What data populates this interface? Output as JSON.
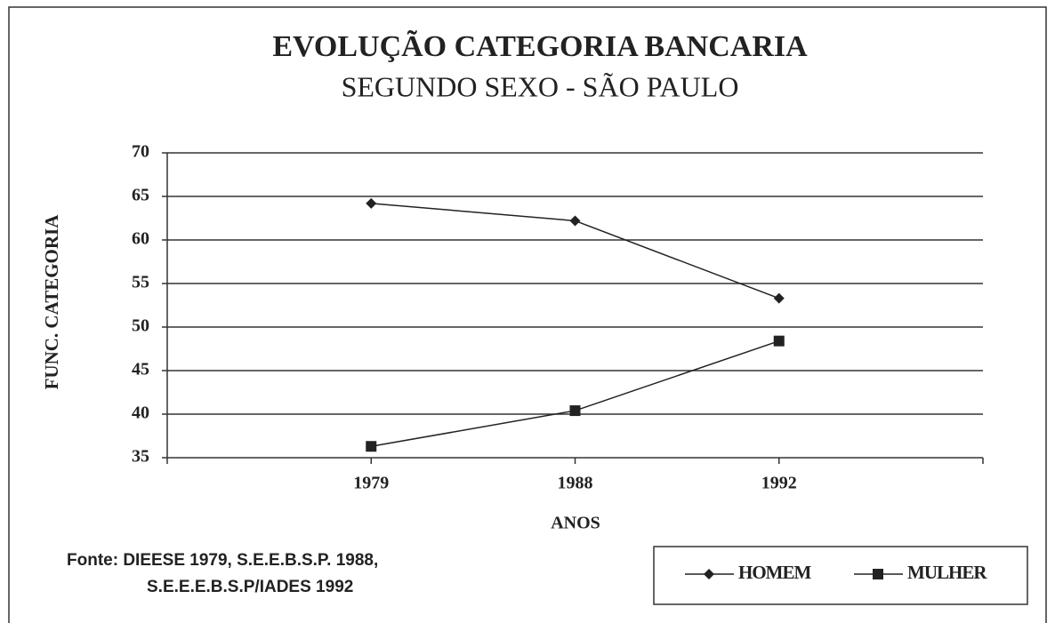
{
  "chart_data": {
    "type": "line",
    "title": "EVOLUÇÃO CATEGORIA BANCARIA",
    "subtitle": "SEGUNDO SEXO - SÃO PAULO",
    "y_label": "FUNC. CATEGORIA",
    "x_label": "ANOS",
    "source": [
      "Fonte: DIEESE 1979, S.E.E.B.S.P. 1988,",
      "S.E.E.E.B.S.P/IADES 1992"
    ],
    "categories": [
      "1979",
      "1988",
      "1992"
    ],
    "series": [
      {
        "name": "HOMEM",
        "color": "#222222",
        "marker": "diamond",
        "values": [
          64.2,
          62.2,
          53.3
        ]
      },
      {
        "name": "MULHER",
        "color": "#222222",
        "marker": "square",
        "values": [
          36.3,
          40.4,
          48.4
        ]
      }
    ],
    "ylim": [
      35,
      70
    ],
    "yticks": [
      35,
      40,
      45,
      50,
      55,
      60,
      65,
      70
    ],
    "grid": true,
    "legend": "bottom-right"
  }
}
